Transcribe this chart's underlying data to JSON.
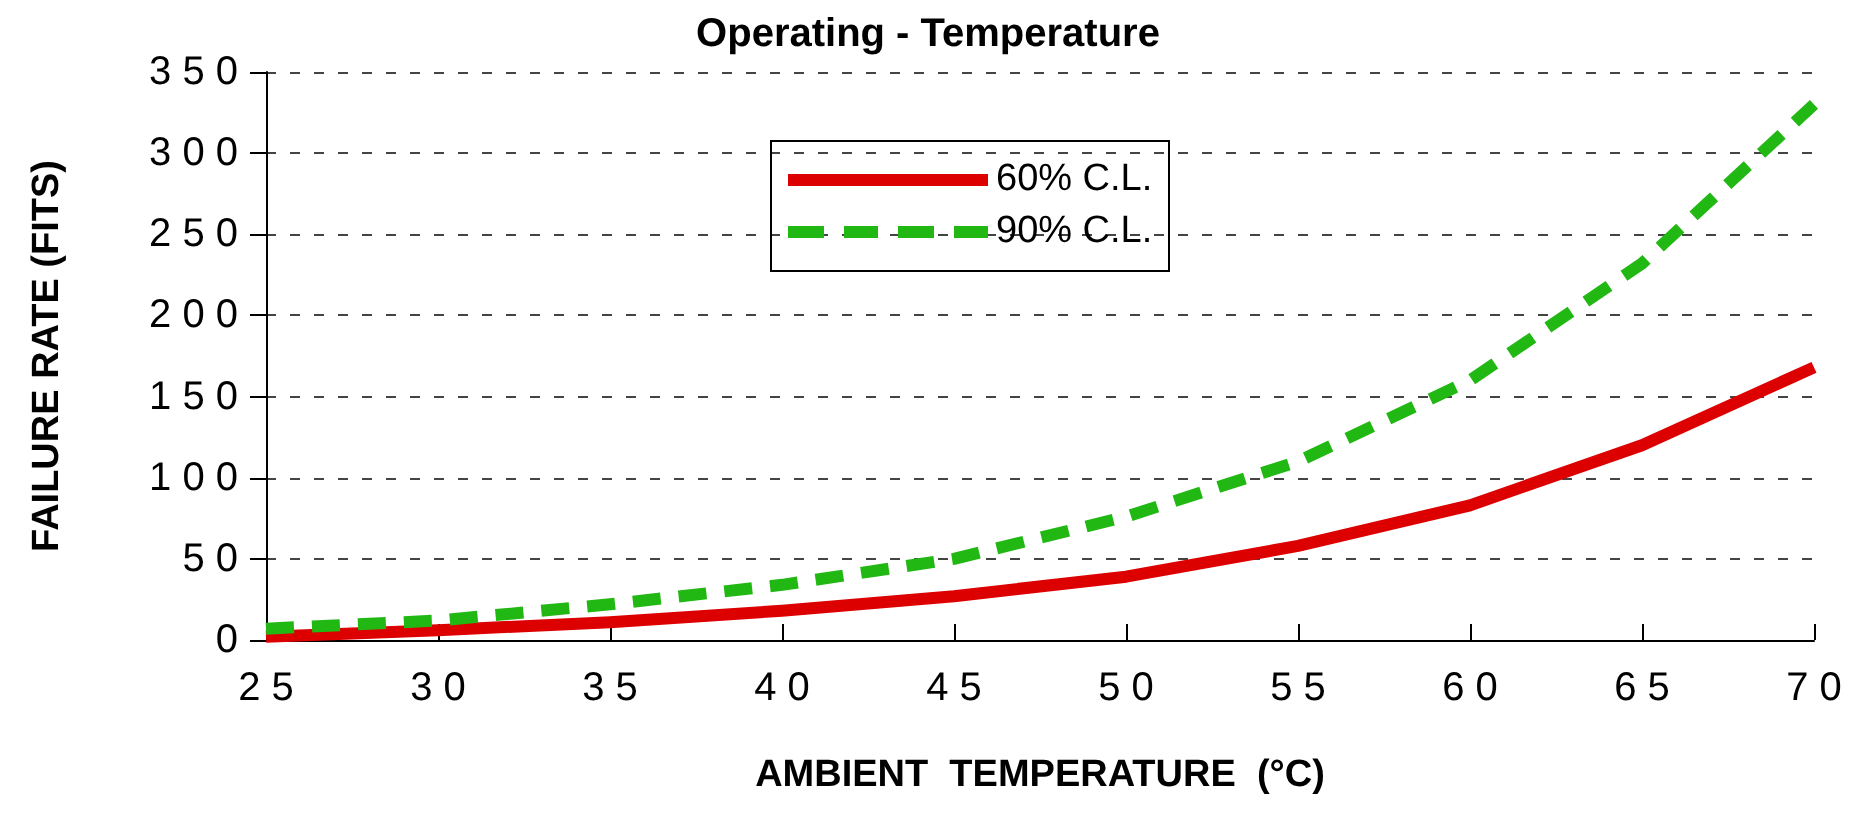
{
  "chart_data": {
    "type": "line",
    "title": "Operating - Temperature",
    "xlabel": "AMBIENT  TEMPERATURE  (°C)",
    "ylabel": "FAILURE RATE (FITS)",
    "x": [
      25,
      30,
      35,
      40,
      45,
      50,
      55,
      60,
      65,
      70
    ],
    "series": [
      {
        "name": "60% C.L.",
        "color": "#dd0000",
        "line_style": "solid",
        "values": [
          2,
          6,
          11,
          18,
          27,
          39,
          58,
          83,
          120,
          168
        ]
      },
      {
        "name": "90% C.L.",
        "color": "#22b814",
        "line_style": "dashed",
        "values": [
          7,
          12,
          22,
          34,
          50,
          76,
          110,
          160,
          232,
          330
        ]
      }
    ],
    "xlim": [
      25,
      70
    ],
    "xticks": [
      25,
      30,
      35,
      40,
      45,
      50,
      55,
      60,
      65,
      70
    ],
    "ylim": [
      0,
      350
    ],
    "yticks": [
      0,
      50,
      100,
      150,
      200,
      250,
      300,
      350
    ],
    "grid": "y",
    "legend": "top",
    "marker": "none"
  }
}
